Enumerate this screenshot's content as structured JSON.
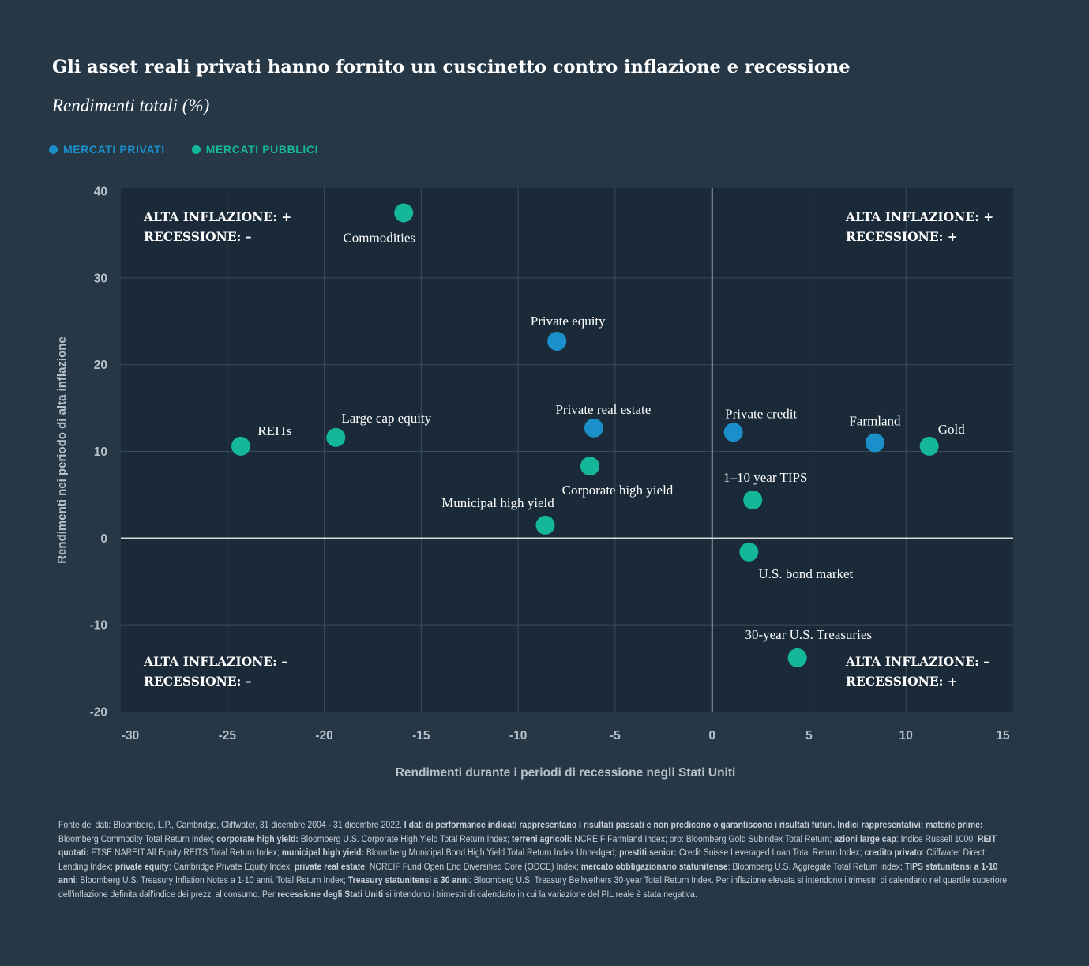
{
  "header": {
    "title": "Gli asset reali privati hanno fornito un cuscinetto contro inflazione e recessione",
    "subtitle": "Rendimenti totali (%)"
  },
  "legend": [
    {
      "label": "MERCATI PRIVATI",
      "color": "#1a8fc9"
    },
    {
      "label": "MERCATI PUBBLICI",
      "color": "#15b79b"
    }
  ],
  "colors": {
    "background": "#263746",
    "plot_background": "#1b2a38",
    "private": "#1a8fc9",
    "public": "#15b79b",
    "gridline": "#3a4b5a",
    "zero_line": "#d6dadd"
  },
  "chart_data": {
    "type": "scatter",
    "title": "Gli asset reali privati hanno fornito un cuscinetto contro inflazione e recessione",
    "subtitle": "Rendimenti totali (%)",
    "xlabel": "Rendimenti durante i periodi di recessione negli Stati Uniti",
    "ylabel": "Rendimenti nei periodo di alta inflazione",
    "xlim": [
      -30,
      15
    ],
    "ylim": [
      -20,
      40
    ],
    "x_ticks": [
      -30,
      -25,
      -20,
      -15,
      -10,
      -5,
      0,
      5,
      10,
      15
    ],
    "y_ticks": [
      -20,
      -10,
      0,
      10,
      20,
      30,
      40
    ],
    "grid": true,
    "legend_position": "top-left",
    "series": [
      {
        "name": "MERCATI PRIVATI",
        "points": [
          {
            "label": "Private equity",
            "x": -8.0,
            "y": 22.7
          },
          {
            "label": "Private real estate",
            "x": -6.1,
            "y": 12.7
          },
          {
            "label": "Private credit",
            "x": 1.1,
            "y": 12.2
          },
          {
            "label": "Farmland",
            "x": 8.4,
            "y": 11.0
          }
        ]
      },
      {
        "name": "MERCATI PUBBLICI",
        "points": [
          {
            "label": "Commodities",
            "x": -15.9,
            "y": 37.5
          },
          {
            "label": "REITs",
            "x": -24.3,
            "y": 10.6
          },
          {
            "label": "Large cap equity",
            "x": -19.4,
            "y": 11.6
          },
          {
            "label": "Corporate high yield",
            "x": -6.3,
            "y": 8.3
          },
          {
            "label": "Municipal high yield",
            "x": -8.6,
            "y": 1.5
          },
          {
            "label": "Gold",
            "x": 11.2,
            "y": 10.6
          },
          {
            "label": "1–10 year TIPS",
            "x": 2.1,
            "y": 4.4
          },
          {
            "label": "U.S. bond market",
            "x": 1.9,
            "y": -1.6
          },
          {
            "label": "30-year U.S. Treasuries",
            "x": 4.4,
            "y": -13.8
          }
        ]
      }
    ],
    "quadrant_labels": [
      {
        "line1": "ALTA INFLAZIONE: +",
        "line2": "RECESSIONE: –",
        "position": "top-left"
      },
      {
        "line1": "ALTA INFLAZIONE: +",
        "line2": "RECESSIONE: +",
        "position": "top-right"
      },
      {
        "line1": "ALTA INFLAZIONE: –",
        "line2": "RECESSIONE: –",
        "position": "bottom-left"
      },
      {
        "line1": "ALTA INFLAZIONE: –",
        "line2": "RECESSIONE: +",
        "position": "bottom-right"
      }
    ]
  },
  "footnote": [
    {
      "text": "Fonte dei dati: Bloomberg, L.P., Cambridge, Cliffwater, 31 dicembre 2004 - 31 dicembre 2022. ",
      "bold": false
    },
    {
      "text": "I dati di performance indicati rappresentano i risultati passati e non predicono o garantiscono i risultati futuri. Indici rappresentativi; materie prime:",
      "bold": true
    },
    {
      "text": " Bloomberg Commodity Total Return Index; ",
      "bold": false
    },
    {
      "text": "corporate high yield:",
      "bold": true
    },
    {
      "text": " Bloomberg U.S. Corporate High Yield Total Return Index; ",
      "bold": false
    },
    {
      "text": "terreni agricoli:",
      "bold": true
    },
    {
      "text": " NCREIF Farmland Index; oro: Bloomberg Gold Subindex Total Return; ",
      "bold": false
    },
    {
      "text": "azioni large cap",
      "bold": true
    },
    {
      "text": ": Indice Russell 1000; ",
      "bold": false
    },
    {
      "text": "REIT quotati:",
      "bold": true
    },
    {
      "text": " FTSE NAREIT All Equity REITS Total Return Index; ",
      "bold": false
    },
    {
      "text": "municipal high yield:",
      "bold": true
    },
    {
      "text": " Bloomberg Municipal Bond High Yield Total Return Index Unhedged; ",
      "bold": false
    },
    {
      "text": "prestiti senior:",
      "bold": true
    },
    {
      "text": " Credit Suisse Leveraged Loan Total Return Index; ",
      "bold": false
    },
    {
      "text": "credito privato",
      "bold": true
    },
    {
      "text": ": Cliffwater Direct Lending Index; ",
      "bold": false
    },
    {
      "text": "private equity",
      "bold": true
    },
    {
      "text": ": Cambridge Private Equity Index; ",
      "bold": false
    },
    {
      "text": "private real estate",
      "bold": true
    },
    {
      "text": ": NCREIF Fund Open End Diversified Core (ODCE) Index; ",
      "bold": false
    },
    {
      "text": "mercato obbligazionario statunitense",
      "bold": true
    },
    {
      "text": ": Bloomberg U.S. Aggregate Total Return Index; ",
      "bold": false
    },
    {
      "text": "TIPS statunitensi a 1-10 anni",
      "bold": true
    },
    {
      "text": ": Bloomberg U.S. Treasury Inflation Notes a 1-10 anni. Total Return Index; ",
      "bold": false
    },
    {
      "text": "Treasury statunitensi a 30 anni",
      "bold": true
    },
    {
      "text": ": Bloomberg U.S. Treasury Bellwethers 30-year Total Return Index. Per inflazione elevata si intendono i trimestri di calendario nel quartile superiore dell'inflazione definita dall'indice dei prezzi al consumo. Per ",
      "bold": false
    },
    {
      "text": "recessione degli Stati Uniti",
      "bold": true
    },
    {
      "text": " si intendono i trimestri di calendario in cui la variazione del PIL reale è stata negativa.",
      "bold": false
    }
  ]
}
